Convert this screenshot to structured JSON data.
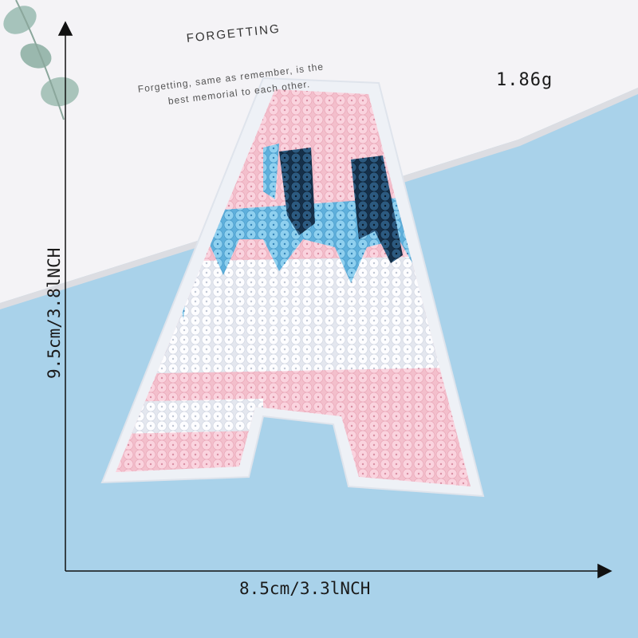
{
  "product": {
    "weight": "1.86g",
    "width_label": "8.5cm/3.3lNCH",
    "height_label": "9.5cm/3.8lNCH"
  },
  "card": {
    "title": "FORGETTING",
    "line1": "Forgetting, same as remember, is the",
    "line2": "best memorial to each other."
  },
  "colors": {
    "background": "#a9d2ea",
    "card": "#f5f4f7",
    "felt": "#eef1f6",
    "sequin_pink": "#f7c7d4",
    "sequin_white": "#fbfbfd",
    "sequin_blue": "#79c3e6",
    "sequin_navy": "#1f3f5f"
  }
}
